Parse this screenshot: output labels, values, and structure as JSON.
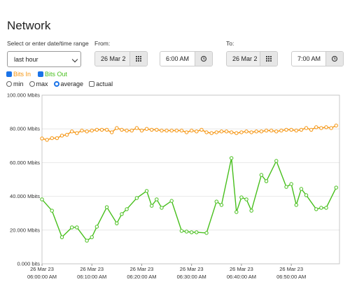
{
  "header": {
    "title": "Network"
  },
  "range": {
    "label": "Select or enter date/time range",
    "select": "last hour",
    "from_label": "From:",
    "from_date": "26 Mar 2",
    "from_time": "6:00 AM",
    "to_label": "To:",
    "to_date": "26 Mar 2",
    "to_time": "7:00 AM"
  },
  "options": [
    {
      "label": "min",
      "checked": false
    },
    {
      "label": "max",
      "checked": false
    },
    {
      "label": "average",
      "checked": true
    }
  ],
  "actual": {
    "label": "actual",
    "checked": false
  },
  "chart_data": {
    "type": "line",
    "grid": true,
    "xlim": [
      "06:00:00",
      "06:59:40"
    ],
    "xticks": [
      {
        "value": "06:00:00",
        "label": [
          "26 Mar 23",
          "06:00:00 AM"
        ]
      },
      {
        "value": "06:10:00",
        "label": [
          "26 Mar 23",
          "06:10:00 AM"
        ]
      },
      {
        "value": "06:20:00",
        "label": [
          "26 Mar 23",
          "06:20:00 AM"
        ]
      },
      {
        "value": "06:30:00",
        "label": [
          "26 Mar 23",
          "06:30:00 AM"
        ]
      },
      {
        "value": "06:40:00",
        "label": [
          "26 Mar 23",
          "06:40:00 AM"
        ]
      },
      {
        "value": "06:50:00",
        "label": [
          "26 Mar 23",
          "06:50:00 AM"
        ]
      }
    ],
    "ylim": [
      0,
      100
    ],
    "yticks": [
      {
        "value": 0,
        "label": "0.000 bits"
      },
      {
        "value": 20,
        "label": "20.000 Mbits"
      },
      {
        "value": 40,
        "label": "40.000 Mbits"
      },
      {
        "value": 60,
        "label": "60.000 Mbits"
      },
      {
        "value": 80,
        "label": "80.000 Mbits"
      },
      {
        "value": 100,
        "label": "100.000 Mbits"
      }
    ],
    "series": [
      {
        "name": "Bits In",
        "color": "#f5940f",
        "checked": true,
        "x": [
          "06:00:00",
          "06:01:00",
          "06:02:00",
          "06:03:00",
          "06:04:00",
          "06:05:00",
          "06:06:00",
          "06:07:00",
          "06:08:00",
          "06:09:00",
          "06:10:00",
          "06:11:00",
          "06:12:00",
          "06:13:00",
          "06:14:00",
          "06:15:00",
          "06:16:00",
          "06:17:00",
          "06:18:00",
          "06:19:00",
          "06:20:00",
          "06:21:00",
          "06:22:00",
          "06:23:00",
          "06:24:00",
          "06:25:00",
          "06:26:00",
          "06:27:00",
          "06:28:00",
          "06:29:00",
          "06:30:00",
          "06:31:00",
          "06:32:00",
          "06:33:00",
          "06:34:00",
          "06:35:00",
          "06:36:00",
          "06:37:00",
          "06:38:00",
          "06:39:00",
          "06:40:00",
          "06:41:00",
          "06:42:00",
          "06:43:00",
          "06:44:00",
          "06:45:00",
          "06:46:00",
          "06:47:00",
          "06:48:00",
          "06:49:00",
          "06:50:00",
          "06:51:00",
          "06:52:00",
          "06:53:00",
          "06:54:00",
          "06:55:00",
          "06:56:00",
          "06:57:00",
          "06:58:00",
          "06:59:00"
        ],
        "values": [
          74.3,
          73.5,
          74.5,
          74.5,
          76,
          76.5,
          78.5,
          77.5,
          79,
          78.5,
          79,
          79.5,
          79.5,
          79.5,
          78,
          80.5,
          79.5,
          79,
          79,
          80.5,
          79,
          80,
          79.5,
          79.5,
          79,
          79,
          79,
          79,
          79,
          78,
          79,
          78.5,
          79.5,
          78,
          77.5,
          78,
          78.5,
          78.5,
          78,
          77.5,
          78,
          78.5,
          78,
          78.5,
          78.5,
          79,
          79,
          78.5,
          79,
          79.5,
          79.5,
          79,
          79.5,
          80.5,
          79.5,
          81,
          80.5,
          81,
          80.5,
          82
        ]
      },
      {
        "name": "Bits Out",
        "color": "#47bf1c",
        "checked": true,
        "x": [
          "06:00:00",
          "06:02:00",
          "06:04:00",
          "06:06:00",
          "06:07:00",
          "06:09:00",
          "06:10:00",
          "06:11:00",
          "06:13:00",
          "06:15:00",
          "06:16:00",
          "06:17:00",
          "06:19:00",
          "06:21:00",
          "06:22:00",
          "06:23:00",
          "06:24:00",
          "06:26:00",
          "06:28:00",
          "06:29:00",
          "06:30:00",
          "06:31:00",
          "06:33:00",
          "06:35:00",
          "06:36:00",
          "06:38:00",
          "06:39:00",
          "06:40:00",
          "06:41:00",
          "06:42:00",
          "06:44:00",
          "06:45:00",
          "06:47:00",
          "06:49:00",
          "06:50:00",
          "06:51:00",
          "06:52:00",
          "06:53:00",
          "06:55:00",
          "06:56:00",
          "06:57:00",
          "06:59:00"
        ],
        "values": [
          38.2,
          31.5,
          15.8,
          21.6,
          21.6,
          13.7,
          15.8,
          22,
          33.6,
          24,
          29.5,
          32.4,
          39,
          43.2,
          34.4,
          38.2,
          33.2,
          37.3,
          19.5,
          19.1,
          18.7,
          18.7,
          18.3,
          36.9,
          34.9,
          62.7,
          30.7,
          39.4,
          38.2,
          31.5,
          52.7,
          49,
          61,
          45.6,
          47.3,
          34.9,
          44.4,
          40.7,
          32.4,
          33.2,
          33.2,
          45.2
        ]
      }
    ]
  }
}
